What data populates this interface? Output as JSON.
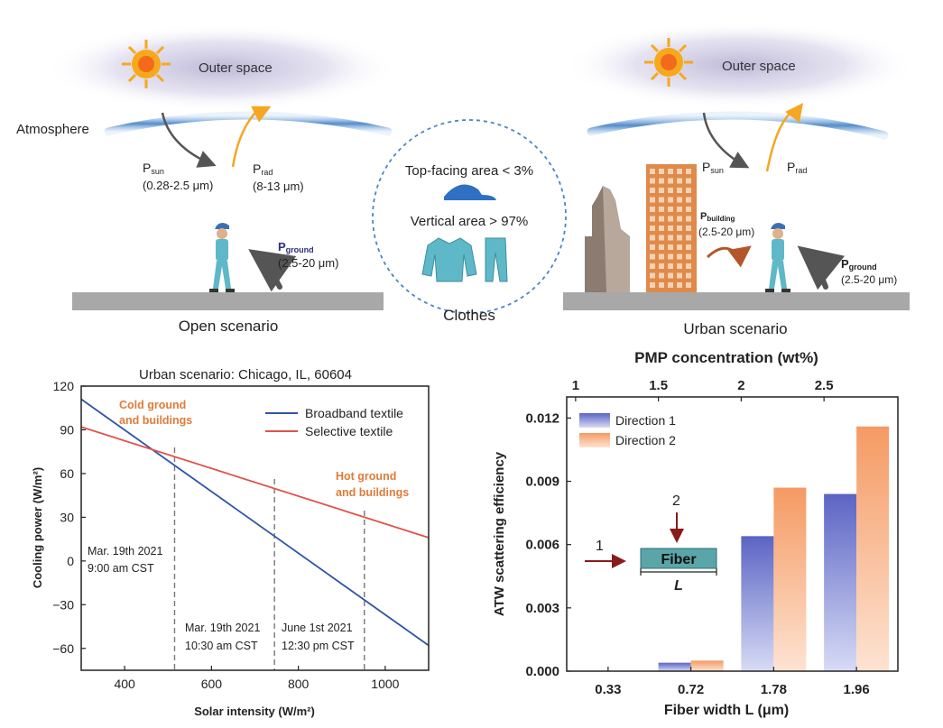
{
  "top": {
    "left": {
      "space_label": "Outer space",
      "atmosphere_label": "Atmosphere",
      "p_sun": "P",
      "p_sun_sub": "sun",
      "p_sun_range": "(0.28-2.5 μm)",
      "p_rad": "P",
      "p_rad_sub": "rad",
      "p_rad_range": "(8-13 μm)",
      "p_ground": "P",
      "p_ground_sub": "ground",
      "p_ground_range": "(2.5-20 μm)",
      "caption": "Open scenario"
    },
    "center": {
      "top_area": "Top-facing area < 3%",
      "vertical_area": "Vertical area > 97%",
      "caption": "Clothes"
    },
    "right": {
      "space_label": "Outer space",
      "p_sun": "P",
      "p_sun_sub": "sun",
      "p_rad": "P",
      "p_rad_sub": "rad",
      "p_building": "P",
      "p_building_sub": "building",
      "p_building_range": "(2.5-20 μm)",
      "p_ground": "P",
      "p_ground_sub": "ground",
      "p_ground_range": "(2.5-20 μm)",
      "caption": "Urban scenario"
    },
    "colors": {
      "sun": "#f7a81b",
      "arrow_orange": "#f5a623",
      "arrow_gray": "#555555",
      "atmosphere": "#4a86c8",
      "ground": "#a8a8a8",
      "building": "#e08a4a",
      "person": "#5fb8c8"
    }
  },
  "chart_data": [
    {
      "type": "line",
      "title": "Urban scenario: Chicago, IL, 60604",
      "xlabel": "Solar intensity (W/m²)",
      "ylabel": "Cooling power (W/m²)",
      "xlim": [
        300,
        1100
      ],
      "ylim": [
        -75,
        120
      ],
      "xticks": [
        400,
        600,
        800,
        1000
      ],
      "yticks": [
        120,
        90,
        60,
        30,
        0,
        -30,
        -60
      ],
      "series": [
        {
          "name": "Broadband textile",
          "color": "#2f55a4",
          "points": [
            [
              300,
              111
            ],
            [
              1100,
              -58
            ]
          ]
        },
        {
          "name": "Selective textile",
          "color": "#e0524a",
          "points": [
            [
              300,
              92
            ],
            [
              1100,
              16
            ]
          ]
        }
      ],
      "vlines": [
        515,
        745,
        952
      ],
      "annotations": {
        "cold": [
          "Cold ground",
          "and buildings"
        ],
        "hot": [
          "Hot ground",
          "and buildings"
        ],
        "time1": [
          "Mar. 19th 2021",
          "9:00 am CST"
        ],
        "time2": [
          "Mar. 19th 2021",
          "10:30 am CST"
        ],
        "time3": [
          "June 1st 2021",
          "12:30 pm CST"
        ],
        "annotation_color": "#e07b39"
      }
    },
    {
      "type": "bar",
      "title": "PMP concentration (wt%)",
      "xlabel": "Fiber width L (μm)",
      "ylabel": "ATW scattering efficiency",
      "ylim": [
        0,
        0.013
      ],
      "yticks": [
        "0.000",
        "0.003",
        "0.006",
        "0.009",
        "0.012"
      ],
      "categories": [
        "0.33",
        "0.72",
        "1.78",
        "1.96"
      ],
      "top_categories": [
        "1",
        "1.5",
        "2",
        "2.5"
      ],
      "series": [
        {
          "name": "Direction 1",
          "color": "#6a75c9",
          "values": [
            0.0,
            0.0004,
            0.0064,
            0.0084
          ]
        },
        {
          "name": "Direction 2",
          "color": "#f6a878",
          "values": [
            0.0,
            0.0005,
            0.0087,
            0.0116
          ]
        }
      ],
      "inset": {
        "arrow1": "1",
        "arrow2": "2",
        "fiber": "Fiber",
        "length": "L"
      }
    }
  ]
}
